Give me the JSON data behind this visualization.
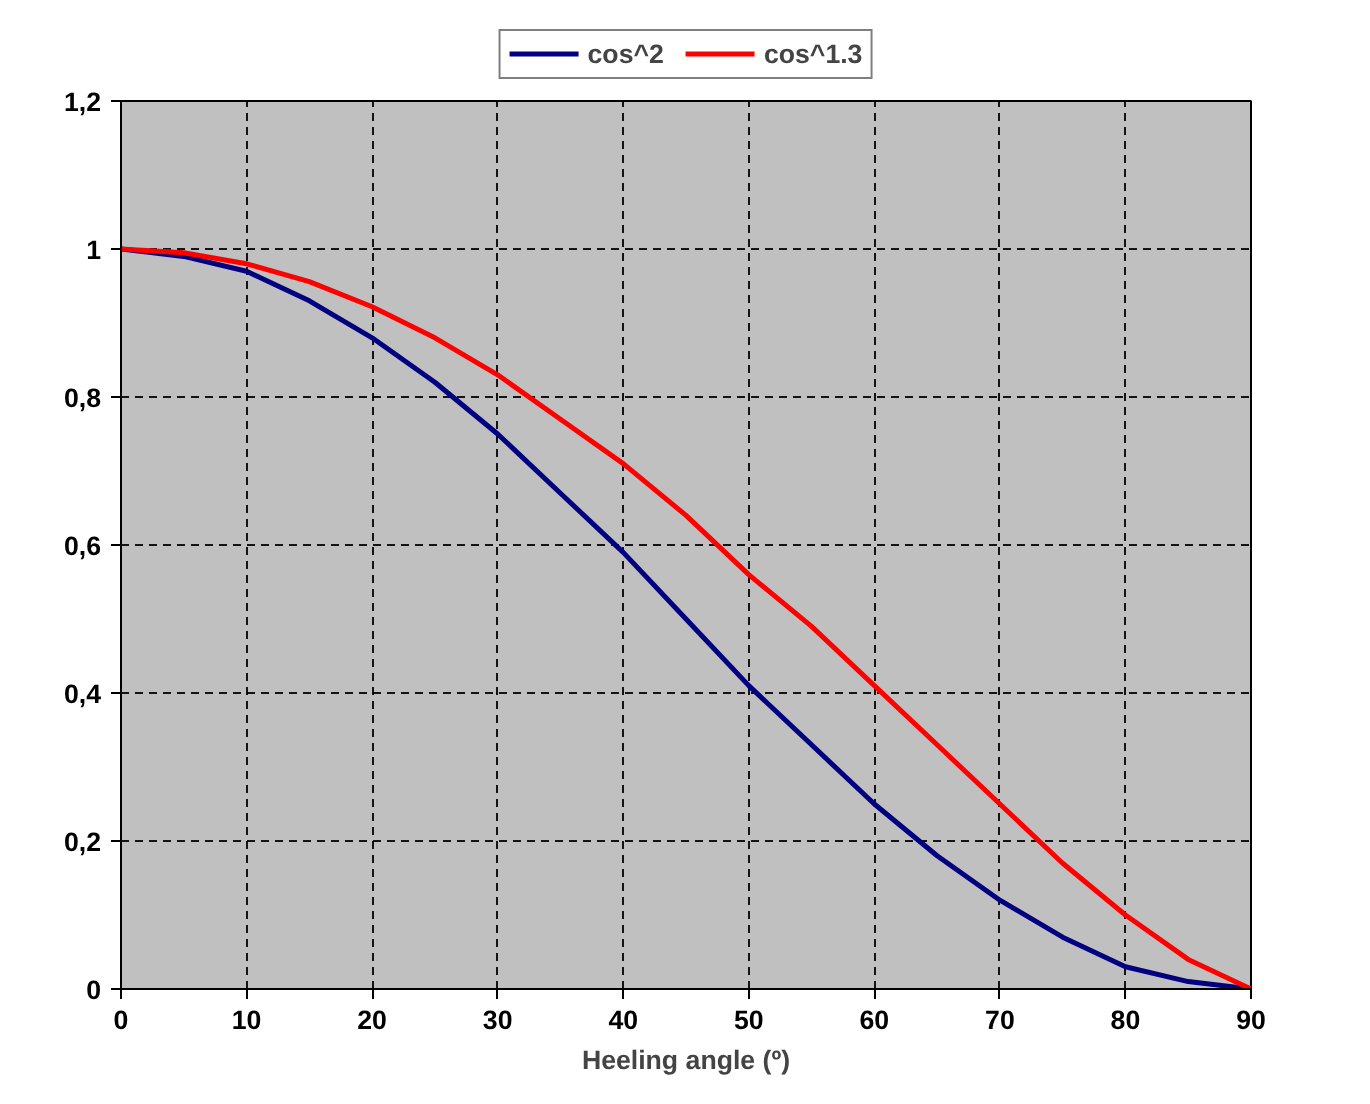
{
  "chart_data": {
    "type": "line",
    "xlabel": "Heeling angle (º)",
    "x": [
      0,
      5,
      10,
      15,
      20,
      25,
      30,
      35,
      40,
      45,
      50,
      55,
      60,
      65,
      70,
      75,
      80,
      85,
      90
    ],
    "series": [
      {
        "name": "cos^2",
        "color": "#000080",
        "values": [
          1,
          0.99,
          0.97,
          0.93,
          0.88,
          0.82,
          0.75,
          0.67,
          0.59,
          0.5,
          0.41,
          0.33,
          0.25,
          0.18,
          0.12,
          0.07,
          0.03,
          0.01,
          0
        ]
      },
      {
        "name": "cos^1.3",
        "color": "#ff0000",
        "values": [
          1,
          0.995,
          0.98,
          0.956,
          0.922,
          0.88,
          0.83,
          0.77,
          0.71,
          0.64,
          0.56,
          0.49,
          0.41,
          0.33,
          0.25,
          0.17,
          0.1,
          0.04,
          0
        ]
      }
    ],
    "xlim": [
      0,
      90
    ],
    "ylim": [
      0,
      1.2
    ],
    "xticks": [
      0,
      10,
      20,
      30,
      40,
      50,
      60,
      70,
      80,
      90
    ],
    "yticks": [
      0,
      {
        "value": 0.2,
        "label": "0,2"
      },
      {
        "value": 0.4,
        "label": "0,4"
      },
      {
        "value": 0.6,
        "label": "0,6"
      },
      {
        "value": 0.8,
        "label": "0,8"
      },
      1,
      {
        "value": 1.2,
        "label": "1,2"
      }
    ],
    "grid": true,
    "legend": "top",
    "marker": "none",
    "line_style": "solid"
  }
}
